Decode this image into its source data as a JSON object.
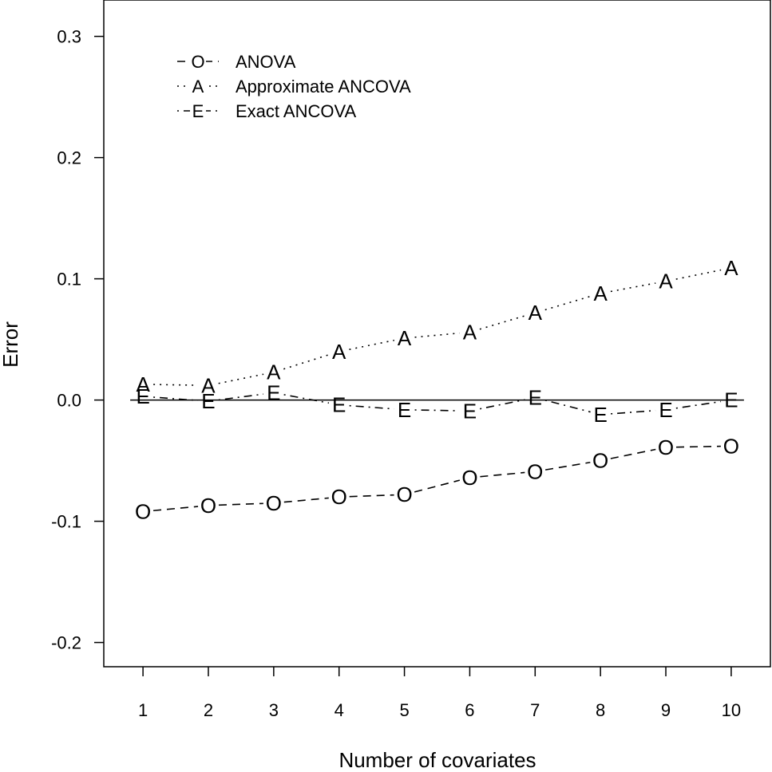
{
  "chart_data": {
    "type": "line",
    "title": "",
    "xlabel": "Number of covariates",
    "ylabel": "Error",
    "x": [
      1,
      2,
      3,
      4,
      5,
      6,
      7,
      8,
      9,
      10
    ],
    "xlim": [
      0.4,
      10.6
    ],
    "ylim": [
      -0.22,
      0.33
    ],
    "xticks": [
      "1",
      "2",
      "3",
      "4",
      "5",
      "6",
      "7",
      "8",
      "9",
      "10"
    ],
    "yticks": [
      -0.2,
      -0.1,
      0.0,
      0.1,
      0.2,
      0.3
    ],
    "ytick_labels": [
      "-0.2",
      "-0.1",
      "0.0",
      "0.1",
      "0.2",
      "0.3"
    ],
    "reference_line": 0.0,
    "grid": false,
    "legend_position": "top-left",
    "series": [
      {
        "name": "ANOVA",
        "marker": "O",
        "linestyle": "dashed",
        "values": [
          -0.092,
          -0.087,
          -0.085,
          -0.08,
          -0.078,
          -0.064,
          -0.059,
          -0.05,
          -0.039,
          -0.038
        ]
      },
      {
        "name": "Approximate ANCOVA",
        "marker": "A",
        "linestyle": "dotted",
        "values": [
          0.013,
          0.012,
          0.023,
          0.04,
          0.051,
          0.056,
          0.072,
          0.088,
          0.098,
          0.109
        ]
      },
      {
        "name": "Exact ANCOVA",
        "marker": "E",
        "linestyle": "dashdot",
        "values": [
          0.003,
          -0.001,
          0.006,
          -0.004,
          -0.008,
          -0.009,
          0.002,
          -0.012,
          -0.008,
          0.0
        ]
      }
    ]
  }
}
